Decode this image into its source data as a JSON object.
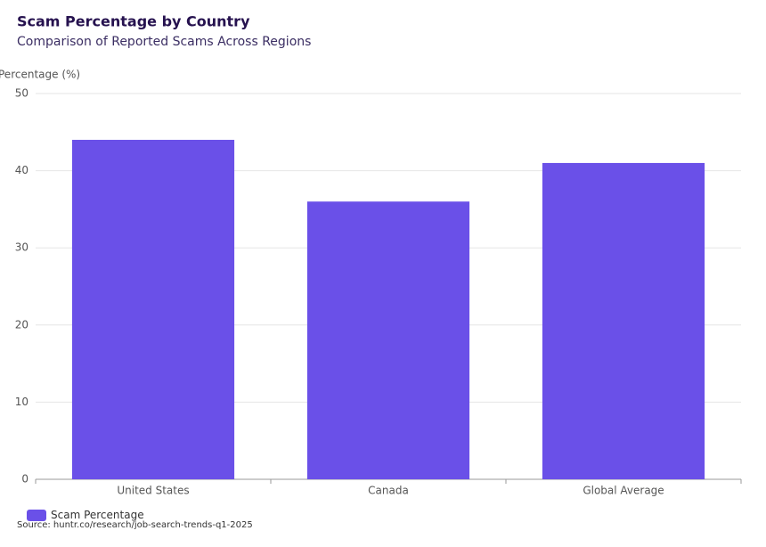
{
  "chart_data": {
    "type": "bar",
    "title": "Scam Percentage by Country",
    "subtitle": "Comparison of Reported Scams Across Regions",
    "y_axis_label": "Percentage (%)",
    "categories": [
      "United States",
      "Canada",
      "Global Average"
    ],
    "series": [
      {
        "name": "Scam Percentage",
        "color": "#6a50e8",
        "values": [
          44,
          36,
          41
        ]
      }
    ],
    "ylim": [
      0,
      50
    ],
    "yticks": [
      0,
      10,
      20,
      30,
      40,
      50
    ],
    "grid": true,
    "legend": "bottom-left",
    "source": "Source: huntr.co/research/job-search-trends-q1-2025"
  }
}
